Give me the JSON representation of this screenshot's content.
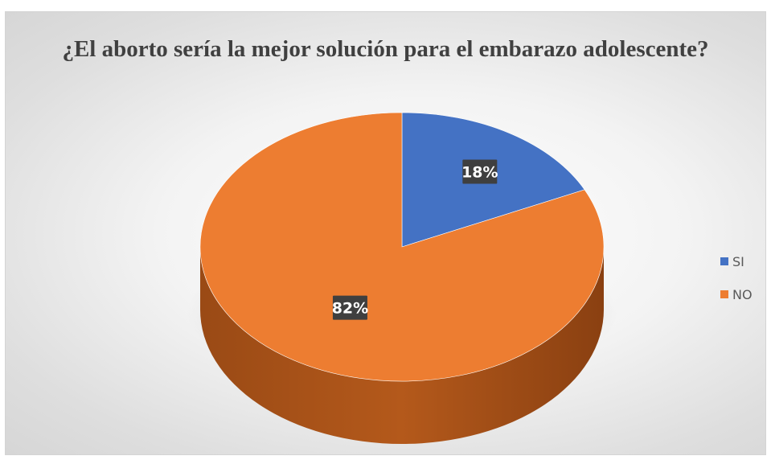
{
  "chart_data": {
    "type": "pie",
    "title": "¿El aborto sería la mejor solución para el embarazo adolescente?",
    "categories": [
      "SI",
      "NO"
    ],
    "values": [
      18,
      82
    ],
    "data_labels": [
      "18%",
      "82%"
    ],
    "colors": [
      "#4472C4",
      "#ED7D31"
    ],
    "legend_position": "right",
    "style": "3d"
  }
}
